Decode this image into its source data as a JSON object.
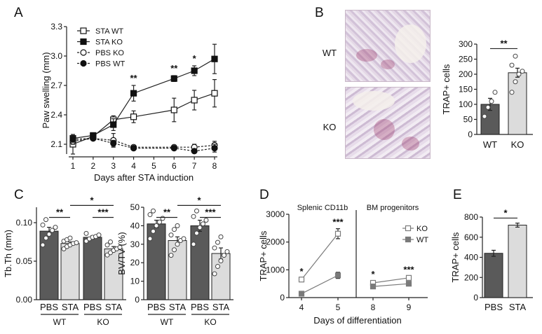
{
  "panels": {
    "A": "A",
    "B": "B",
    "C": "C",
    "D": "D",
    "E": "E"
  },
  "chart_data": [
    {
      "id": "A",
      "type": "line",
      "xlabel": "Days after STA induction",
      "ylabel": "Paw swelling (mm)",
      "x": [
        1,
        2,
        3,
        4,
        5,
        6,
        7,
        8
      ],
      "xticks": [
        "1",
        "2",
        "3",
        "4",
        "5",
        "6",
        "7",
        "8"
      ],
      "ylim": [
        2.0,
        3.3
      ],
      "yticks": [
        "2.1",
        "2.4",
        "2.7",
        "3.0",
        "3.3"
      ],
      "ytick_values": [
        2.1,
        2.4,
        2.7,
        3.0,
        3.3
      ],
      "series": [
        {
          "name": "STA WT",
          "values": [
            2.1,
            2.18,
            2.35,
            2.38,
            null,
            2.45,
            2.55,
            2.62
          ],
          "errors": [
            0.1,
            0.03,
            0.04,
            0.06,
            null,
            0.12,
            0.1,
            0.14
          ],
          "marker": "square-open",
          "line": "solid"
        },
        {
          "name": "STA KO",
          "values": [
            2.16,
            2.19,
            2.3,
            2.62,
            null,
            2.77,
            2.85,
            2.97
          ],
          "errors": [
            0.03,
            0.02,
            0.06,
            0.08,
            null,
            0.03,
            0.05,
            0.15
          ],
          "marker": "square-filled",
          "line": "solid"
        },
        {
          "name": "PBS KO",
          "values": [
            2.13,
            2.16,
            2.14,
            2.07,
            null,
            2.07,
            2.07,
            2.09
          ],
          "errors": [
            0.03,
            0.02,
            0.07,
            0.02,
            null,
            0.02,
            0.03,
            0.04
          ],
          "marker": "circle-open",
          "line": "dashed"
        },
        {
          "name": "PBS WT",
          "values": [
            2.15,
            2.16,
            2.11,
            2.06,
            null,
            2.06,
            2.03,
            2.06
          ],
          "errors": [
            0.03,
            0.02,
            0.03,
            0.02,
            null,
            0.02,
            0.02,
            0.04
          ],
          "marker": "circle-filled",
          "line": "dashed"
        }
      ],
      "annotations": [
        {
          "x": 4,
          "text": "**"
        },
        {
          "x": 6,
          "text": "**"
        },
        {
          "x": 7,
          "text": "*"
        }
      ]
    },
    {
      "id": "B",
      "type": "bar",
      "ylabel": "TRAP+ cells",
      "categories": [
        "WT",
        "KO"
      ],
      "values": [
        100,
        205
      ],
      "errors": [
        20,
        15
      ],
      "points": [
        [
          60,
          90,
          110,
          140
        ],
        [
          140,
          175,
          200,
          210,
          230,
          260
        ]
      ],
      "ylim": [
        0,
        300
      ],
      "yticks": [
        "0",
        "50",
        "100",
        "150",
        "200",
        "250",
        "300"
      ],
      "ytick_values": [
        0,
        50,
        100,
        150,
        200,
        250,
        300
      ],
      "significance": [
        {
          "pair": [
            0,
            1
          ],
          "text": "**"
        }
      ],
      "image_labels": [
        "WT",
        "KO"
      ]
    },
    {
      "id": "C1",
      "type": "bar",
      "ylabel": "Tb.Th (mm)",
      "categories": [
        "PBS",
        "STA",
        "PBS",
        "STA"
      ],
      "groups": [
        "WT",
        "KO"
      ],
      "values": [
        0.089,
        0.073,
        0.081,
        0.066
      ],
      "errors": [
        0.005,
        0.002,
        0.002,
        0.003
      ],
      "points": [
        [
          0.071,
          0.08,
          0.085,
          0.09,
          0.094,
          0.097,
          0.104
        ],
        [
          0.066,
          0.069,
          0.071,
          0.073,
          0.074,
          0.076,
          0.078,
          0.08
        ],
        [
          0.076,
          0.079,
          0.081,
          0.082,
          0.084,
          0.086
        ],
        [
          0.058,
          0.061,
          0.064,
          0.066,
          0.068,
          0.071,
          0.075
        ]
      ],
      "ylim": [
        0,
        0.12
      ],
      "yticks": [
        "0.00",
        "0.05",
        "0.10"
      ],
      "ytick_values": [
        0,
        0.05,
        0.1
      ],
      "significance": [
        {
          "pair": [
            0,
            1
          ],
          "text": "**"
        },
        {
          "pair": [
            2,
            3
          ],
          "text": "***"
        },
        {
          "pair": [
            1,
            3
          ],
          "text": "*"
        }
      ]
    },
    {
      "id": "C2",
      "type": "bar",
      "ylabel": "BV/TV (%)",
      "categories": [
        "PBS",
        "STA",
        "PBS",
        "STA"
      ],
      "groups": [
        "WT",
        "KO"
      ],
      "values": [
        41,
        32,
        40,
        25
      ],
      "errors": [
        2,
        2,
        3,
        3
      ],
      "points": [
        [
          33,
          37,
          40,
          42,
          44,
          46,
          48
        ],
        [
          24,
          27,
          30,
          32,
          33,
          35,
          38,
          40
        ],
        [
          30,
          36,
          39,
          41,
          43,
          45,
          48
        ],
        [
          14,
          18,
          21,
          24,
          26,
          28,
          31,
          34
        ]
      ],
      "ylim": [
        0,
        50
      ],
      "yticks": [
        "0",
        "10",
        "20",
        "30",
        "40",
        "50"
      ],
      "ytick_values": [
        0,
        10,
        20,
        30,
        40,
        50
      ],
      "significance": [
        {
          "pair": [
            0,
            1
          ],
          "text": "**"
        },
        {
          "pair": [
            2,
            3
          ],
          "text": "***"
        },
        {
          "pair": [
            1,
            3
          ],
          "text": "*"
        }
      ]
    },
    {
      "id": "D",
      "type": "line",
      "xlabel": "Days of differentiation",
      "ylabel": "TRAP+ cells",
      "ylim": [
        0,
        3000
      ],
      "yticks": [
        "0",
        "1000",
        "2000",
        "3000"
      ],
      "ytick_values": [
        0,
        1000,
        2000,
        3000
      ],
      "section_titles": [
        "Splenic CD11b",
        "BM progenitors"
      ],
      "xticks": [
        "4",
        "5",
        "8",
        "9"
      ],
      "legend": [
        "KO",
        "WT"
      ],
      "segments": [
        {
          "section": 0,
          "x": [
            "4",
            "5"
          ],
          "KO": [
            650,
            2300
          ],
          "WT": [
            140,
            800
          ],
          "KO_err": [
            60,
            180
          ],
          "WT_err": [
            30,
            110
          ]
        },
        {
          "section": 1,
          "x": [
            "8",
            "9"
          ],
          "KO": [
            530,
            710
          ],
          "WT": [
            400,
            500
          ],
          "KO_err": [
            70,
            60
          ],
          "WT_err": [
            50,
            70
          ]
        }
      ],
      "annotations": [
        {
          "x": "4",
          "text": "*"
        },
        {
          "x": "5",
          "text": "***"
        },
        {
          "x": "8",
          "text": "*"
        },
        {
          "x": "9",
          "text": "***"
        }
      ]
    },
    {
      "id": "E",
      "type": "bar",
      "ylabel": "TRAP+ cells",
      "categories": [
        "PBS",
        "STA"
      ],
      "values": [
        440,
        720
      ],
      "errors": [
        30,
        20
      ],
      "ylim": [
        0,
        800
      ],
      "yticks": [
        "0",
        "200",
        "400",
        "600",
        "800"
      ],
      "ytick_values": [
        0,
        200,
        400,
        600,
        800
      ],
      "significance": [
        {
          "pair": [
            0,
            1
          ],
          "text": "*"
        }
      ]
    }
  ],
  "colors": {
    "dark_bar": "#5a5a5a",
    "light_bar": "#dcdcdc",
    "line": "#333333",
    "gray_marker": "#7a7a7a"
  }
}
